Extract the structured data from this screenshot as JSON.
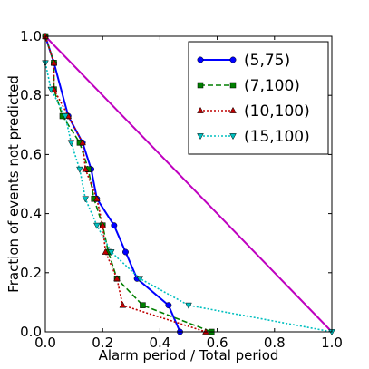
{
  "chart_data": {
    "type": "line",
    "title": "",
    "xlabel": "Alarm period / Total period",
    "ylabel": "Fraction of events not predicted",
    "xlim": [
      0,
      1
    ],
    "ylim": [
      0,
      1
    ],
    "xticks": [
      "0.0",
      "0.2",
      "0.4",
      "0.6",
      "0.8",
      "1.0"
    ],
    "yticks": [
      "0.0",
      "0.2",
      "0.4",
      "0.6",
      "0.8",
      "1.0"
    ],
    "grid": false,
    "legend_position": "top-right",
    "reference_line": {
      "x": [
        0,
        1
      ],
      "y": [
        1,
        0
      ],
      "color": "#bf00bf"
    },
    "series": [
      {
        "name": "(5,75)",
        "color": "#0000ff",
        "marker": "circle",
        "line_style": "solid",
        "x": [
          0.0,
          0.03,
          0.08,
          0.13,
          0.16,
          0.18,
          0.24,
          0.28,
          0.32,
          0.43,
          0.47
        ],
        "y": [
          1.0,
          0.91,
          0.73,
          0.64,
          0.55,
          0.45,
          0.36,
          0.27,
          0.18,
          0.09,
          0.0
        ]
      },
      {
        "name": "(7,100)",
        "color": "#007f00",
        "marker": "square",
        "line_style": "dashed",
        "x": [
          0.0,
          0.03,
          0.03,
          0.06,
          0.12,
          0.15,
          0.17,
          0.2,
          0.22,
          0.25,
          0.34,
          0.58
        ],
        "y": [
          1.0,
          0.91,
          0.82,
          0.73,
          0.64,
          0.55,
          0.45,
          0.36,
          0.27,
          0.18,
          0.09,
          0.0
        ]
      },
      {
        "name": "(10,100)",
        "color": "#bf0000",
        "marker": "triangle-up",
        "line_style": "dotted",
        "x": [
          0.0,
          0.03,
          0.03,
          0.08,
          0.13,
          0.14,
          0.18,
          0.2,
          0.21,
          0.25,
          0.27,
          0.56
        ],
        "y": [
          1.0,
          0.91,
          0.82,
          0.73,
          0.64,
          0.55,
          0.45,
          0.36,
          0.27,
          0.18,
          0.09,
          0.0
        ]
      },
      {
        "name": "(15,100)",
        "color": "#00bfbf",
        "marker": "triangle-down",
        "line_style": "dotted",
        "x": [
          0.0,
          0.02,
          0.07,
          0.09,
          0.12,
          0.14,
          0.18,
          0.23,
          0.33,
          0.5,
          1.0
        ],
        "y": [
          0.91,
          0.82,
          0.73,
          0.64,
          0.55,
          0.45,
          0.36,
          0.27,
          0.18,
          0.09,
          0.0
        ]
      }
    ]
  }
}
